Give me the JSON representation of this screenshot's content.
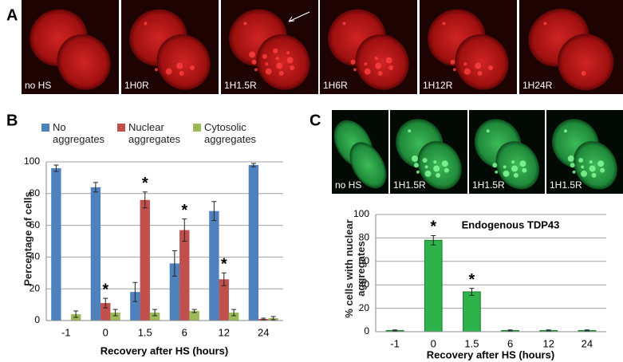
{
  "panel_a": {
    "label": "A",
    "images": [
      "no HS",
      "1H0R",
      "1H1.5R",
      "1H6R",
      "1H12R",
      "1H24R"
    ]
  },
  "panel_c": {
    "label": "C",
    "images": [
      "no HS",
      "1H1.5R",
      "1H1.5R",
      "1H1.5R"
    ]
  },
  "chart_data": [
    {
      "type": "bar",
      "label": "B",
      "categories": [
        "-1",
        "0",
        "1.5",
        "6",
        "12",
        "24"
      ],
      "xlabel": "Recovery after HS (hours)",
      "ylabel": "Percentage of cells",
      "ylim": [
        0,
        100
      ],
      "yticks": [
        0,
        20,
        40,
        60,
        80,
        100
      ],
      "grid": true,
      "series": [
        {
          "name": "No aggregates",
          "color": "#4f81bd",
          "values": [
            96,
            84,
            18,
            36,
            69,
            98
          ],
          "errors": [
            2,
            3,
            6,
            8,
            6,
            1
          ]
        },
        {
          "name": "Nuclear aggregates",
          "color": "#c0504d",
          "values": [
            0,
            11,
            76,
            57,
            26,
            1
          ],
          "errors": [
            0,
            3,
            5,
            7,
            4,
            0.5
          ],
          "markers": [
            null,
            "*",
            "*",
            "*",
            "*",
            null
          ]
        },
        {
          "name": "Cytosolic aggregates",
          "color": "#9bbb59",
          "values": [
            4,
            5,
            5,
            6,
            5,
            1.5
          ],
          "errors": [
            2,
            2,
            2,
            1,
            2,
            1
          ]
        }
      ]
    },
    {
      "type": "bar",
      "categories": [
        "-1",
        "0",
        "1.5",
        "6",
        "12",
        "24"
      ],
      "xlabel": "Recovery after HS (hours)",
      "ylabel": "% cells with nuclear aggregates",
      "annotation": "Endogenous TDP43",
      "ylim": [
        0,
        100
      ],
      "yticks": [
        0,
        20,
        40,
        60,
        80,
        100
      ],
      "grid": true,
      "color": "#2db34a",
      "values": [
        1,
        78,
        34,
        1,
        1,
        1
      ],
      "errors": [
        0.5,
        4,
        3,
        0.5,
        0.5,
        0.5
      ],
      "markers": [
        null,
        "*",
        "*",
        null,
        null,
        null
      ]
    }
  ]
}
